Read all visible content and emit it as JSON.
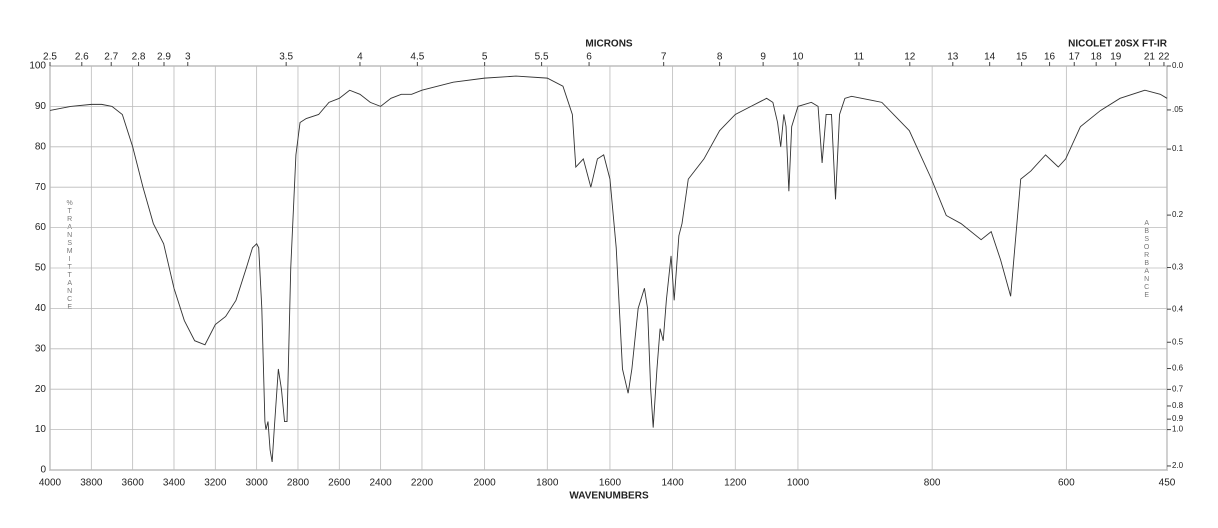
{
  "chart_data": {
    "type": "line",
    "title": "NICOLET 20SX FT-IR",
    "top_axis_label": "MICRONS",
    "x_label": "WAVENUMBERS",
    "y_label": "%TRANSMITTANCE",
    "y2_label": "ABSORBANCE",
    "xscale": {
      "type": "piecewise",
      "breaks": [
        4000,
        2200,
        1000,
        450
      ]
    },
    "xlim": [
      4000,
      450
    ],
    "xticks": [
      4000,
      3800,
      3600,
      3400,
      3200,
      3000,
      2800,
      2600,
      2400,
      2200,
      2000,
      1800,
      1600,
      1400,
      1200,
      1000,
      800,
      600,
      450
    ],
    "ylim": [
      0,
      100
    ],
    "yticks": [
      0,
      10,
      20,
      30,
      40,
      50,
      60,
      70,
      80,
      90,
      100
    ],
    "y2scale": "absorbance",
    "y2ticks": [
      {
        "value": 0,
        "label": "0.0"
      },
      {
        "value": 0.05,
        "label": ".05"
      },
      0.1,
      0.2,
      0.3,
      0.4,
      0.5,
      0.6,
      0.7,
      0.8,
      0.9,
      {
        "value": 1,
        "label": "1.0"
      },
      {
        "value": 2,
        "label": "2.0"
      }
    ],
    "micron_ticks": [
      2.5,
      2.6,
      2.7,
      2.8,
      2.9,
      3,
      3.5,
      4,
      4.5,
      5,
      5.5,
      6,
      7,
      8,
      9,
      10,
      11,
      12,
      13,
      14,
      15,
      16,
      17,
      18,
      19,
      21,
      22
    ],
    "grid": true,
    "color": "#333333",
    "x": [
      4000,
      3900,
      3800,
      3750,
      3700,
      3650,
      3600,
      3550,
      3500,
      3450,
      3400,
      3350,
      3300,
      3250,
      3200,
      3150,
      3100,
      3050,
      3020,
      3000,
      2990,
      2975,
      2960,
      2955,
      2945,
      2935,
      2925,
      2915,
      2895,
      2880,
      2865,
      2853,
      2835,
      2810,
      2790,
      2760,
      2700,
      2650,
      2600,
      2550,
      2500,
      2450,
      2400,
      2350,
      2300,
      2250,
      2200,
      2100,
      2000,
      1900,
      1800,
      1750,
      1720,
      1709,
      1685,
      1661,
      1640,
      1620,
      1600,
      1580,
      1560,
      1542,
      1530,
      1510,
      1490,
      1480,
      1470,
      1462,
      1450,
      1440,
      1430,
      1420,
      1405,
      1395,
      1380,
      1370,
      1350,
      1300,
      1250,
      1200,
      1150,
      1100,
      1080,
      1065,
      1055,
      1045,
      1038,
      1029,
      1020,
      1000,
      980,
      970,
      964,
      958,
      950,
      944,
      938,
      930,
      920,
      890,
      875,
      834,
      801,
      779,
      757,
      727,
      712,
      698,
      683,
      668,
      653,
      631,
      612,
      601,
      579,
      549,
      520,
      483,
      460,
      450
    ],
    "values": [
      89,
      90,
      90.5,
      90.5,
      90,
      88,
      80,
      70,
      61,
      56,
      45,
      37,
      32,
      31,
      36,
      38,
      42,
      50,
      55,
      56,
      55,
      40,
      12,
      10,
      12,
      5,
      2,
      10,
      25,
      20,
      12,
      12,
      50,
      78,
      86,
      87,
      88,
      91,
      92,
      94,
      93,
      91,
      90,
      92,
      93,
      93,
      94,
      96,
      97,
      97.5,
      97,
      95,
      88,
      75,
      77,
      70,
      77,
      78,
      72,
      55,
      25,
      19,
      25,
      40,
      45,
      40,
      20,
      10.5,
      25,
      35,
      32,
      42,
      53,
      42,
      58,
      61,
      72,
      77,
      84,
      88,
      90,
      92,
      91,
      86,
      80,
      88,
      85,
      69,
      85,
      90,
      91,
      90,
      76,
      88,
      88,
      67,
      88,
      92,
      92.5,
      91.5,
      91,
      84,
      72,
      63,
      61,
      57,
      59,
      52,
      43,
      72,
      74,
      78,
      75,
      77,
      85,
      89,
      92,
      94,
      93,
      92
    ]
  }
}
